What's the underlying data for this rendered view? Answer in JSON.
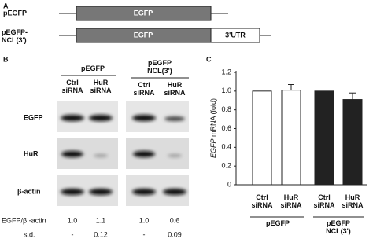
{
  "panel_a": {
    "letter": "A",
    "constructs": [
      {
        "name": "pEGFP",
        "box": "EGFP"
      },
      {
        "name": "pEGFP-NCL(3')",
        "box": "EGFP",
        "utr": "3'UTR"
      }
    ]
  },
  "panel_b": {
    "letter": "B",
    "groups": [
      "pEGFP",
      "pEGFP NCL(3')"
    ],
    "lanes": [
      "Ctrl siRNA",
      "HuR siRNA",
      "Ctrl siRNA",
      "HuR siRNA"
    ],
    "rows": [
      "EGFP",
      "HuR",
      "β-actin"
    ],
    "quant_label": "EGFP/β -actin",
    "quant": [
      "1.0",
      "1.1",
      "1.0",
      "0.6"
    ],
    "sd_label": "s.d.",
    "sd": [
      "-",
      "0.12",
      "-",
      "0.09"
    ]
  },
  "chart_data": {
    "type": "bar",
    "letter": "C",
    "y_label": "mRNA (fold)",
    "y_label_gene": "EGFP",
    "categories": [
      "Ctrl siRNA",
      "HuR siRNA",
      "Ctrl siRNA",
      "HuR siRNA"
    ],
    "group_labels": [
      "pEGFP",
      "pEGFP NCL(3')"
    ],
    "values": [
      1.0,
      1.01,
      1.0,
      0.91
    ],
    "errors": [
      0,
      0.06,
      0,
      0.07
    ],
    "colors": [
      "#ffffff",
      "#ffffff",
      "#222222",
      "#222222"
    ],
    "ylim": [
      0,
      1.2
    ],
    "yticks": [
      0,
      0.2,
      0.4,
      0.6,
      0.8,
      {
        "value": 1,
        "label": "1.0"
      },
      1.2
    ]
  }
}
